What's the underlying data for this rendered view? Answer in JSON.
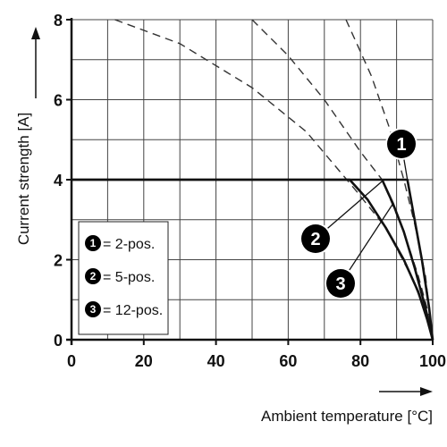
{
  "chart_data": {
    "type": "line",
    "xlabel": "Ambient temperature [°C]",
    "ylabel": "Current strength [A]",
    "xlim": [
      0,
      100
    ],
    "ylim": [
      0,
      8
    ],
    "x_ticks": [
      0,
      20,
      40,
      60,
      80,
      100
    ],
    "y_ticks": [
      0,
      2,
      4,
      6,
      8
    ],
    "grid": true,
    "legend_position": "bottom-left",
    "colors": {
      "solid": "#111111",
      "dashed": "#333333",
      "grid": "#444444",
      "badge": "#000000"
    },
    "legend": [
      {
        "badge": "1",
        "label": "= 2-pos."
      },
      {
        "badge": "2",
        "label": "= 5-pos."
      },
      {
        "badge": "3",
        "label": "= 12-pos."
      }
    ],
    "series": [
      {
        "badge": "1",
        "style": "solid",
        "points": [
          [
            0,
            4
          ],
          [
            93,
            4
          ],
          [
            95,
            3
          ],
          [
            97,
            2
          ],
          [
            99,
            0.8
          ],
          [
            100,
            0
          ]
        ]
      },
      {
        "badge": "2",
        "style": "solid",
        "points": [
          [
            0,
            4
          ],
          [
            77,
            4
          ],
          [
            82,
            3.5
          ],
          [
            87,
            2.8
          ],
          [
            92,
            2
          ],
          [
            96,
            1.2
          ],
          [
            98.5,
            0.5
          ],
          [
            100,
            0
          ]
        ]
      },
      {
        "badge": "3",
        "style": "solid",
        "points": [
          [
            86,
            4
          ],
          [
            89,
            3.4
          ],
          [
            92,
            2.7
          ],
          [
            95,
            1.8
          ],
          [
            98,
            0.8
          ],
          [
            100,
            0
          ]
        ]
      }
    ],
    "derating_curves": [
      {
        "style": "dashed",
        "points": [
          [
            12,
            8
          ],
          [
            30,
            7.4
          ],
          [
            50,
            6.3
          ],
          [
            65,
            5.2
          ],
          [
            79,
            3.7
          ],
          [
            87,
            2.8
          ],
          [
            94,
            1.6
          ],
          [
            98,
            0.7
          ],
          [
            100,
            0
          ]
        ]
      },
      {
        "style": "dashed",
        "points": [
          [
            50,
            8
          ],
          [
            60,
            7.1
          ],
          [
            70,
            6
          ],
          [
            80,
            4.7
          ],
          [
            86,
            4
          ],
          [
            92,
            2.7
          ],
          [
            96,
            1.6
          ],
          [
            99,
            0.6
          ],
          [
            100,
            0
          ]
        ]
      },
      {
        "style": "dashed",
        "points": [
          [
            76,
            8
          ],
          [
            83,
            6.6
          ],
          [
            88,
            5.3
          ],
          [
            92,
            4
          ],
          [
            95,
            2.9
          ],
          [
            98,
            1.6
          ],
          [
            100,
            0
          ]
        ]
      }
    ],
    "callouts": [
      {
        "badge": "1",
        "at": [
          93,
          4
        ]
      },
      {
        "badge": "2",
        "at": [
          86.5,
          4
        ]
      },
      {
        "badge": "3",
        "at": [
          89,
          3.4
        ]
      }
    ]
  }
}
